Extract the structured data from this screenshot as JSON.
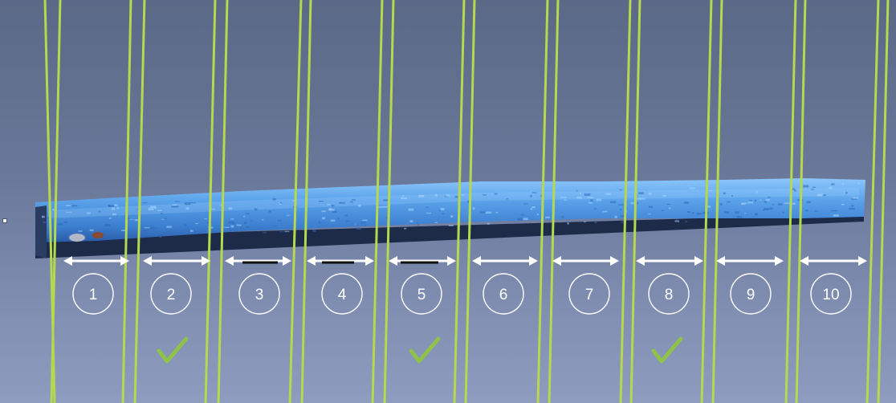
{
  "viewport": {
    "background_top": "#5b6987",
    "background_bottom": "#8e9cc0"
  },
  "scan": {
    "object": "log",
    "color": "#5aa2ea",
    "highlight": "#9cd0ff",
    "shadow": "#1d2a48"
  },
  "guides": {
    "color": "#b5d84e",
    "pair_count": 11
  },
  "segments": [
    {
      "label": "1",
      "marked": false,
      "black_bar": false
    },
    {
      "label": "2",
      "marked": true,
      "black_bar": false
    },
    {
      "label": "3",
      "marked": false,
      "black_bar": true
    },
    {
      "label": "4",
      "marked": false,
      "black_bar": true
    },
    {
      "label": "5",
      "marked": true,
      "black_bar": true
    },
    {
      "label": "6",
      "marked": false,
      "black_bar": false
    },
    {
      "label": "7",
      "marked": false,
      "black_bar": false
    },
    {
      "label": "8",
      "marked": true,
      "black_bar": false
    },
    {
      "label": "9",
      "marked": false,
      "black_bar": false
    },
    {
      "label": "10",
      "marked": false,
      "black_bar": false
    }
  ],
  "icons": {
    "check": "checkmark-icon",
    "arrow": "double-arrow-icon"
  },
  "colors": {
    "check": "#8fc24a",
    "arrow": "#ffffff",
    "circle": "#ffffff",
    "bar": "#111111"
  }
}
